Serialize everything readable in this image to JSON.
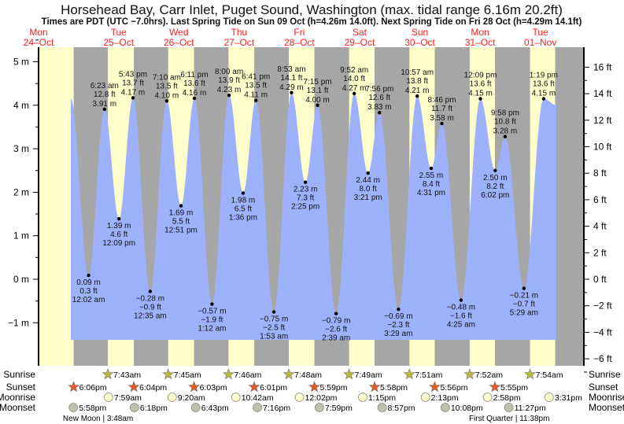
{
  "chart_data": {
    "type": "area",
    "title": "Horsehead Bay, Carr Inlet, Puget Sound, Washington (max. tidal range 6.16m 20.2ft)",
    "subtitle": "Times are PDT (UTC −7.0hrs). Last Spring Tide on Sun 09 Oct (h=4.26m 14.0ft). Next Spring Tide on Fri 28 Oct (h=4.29m 14.1ft)",
    "ylabel_left": "m",
    "ylabel_right": "ft",
    "ylim_m": [
      -1.85,
      5.45
    ],
    "left_ticks": [
      "5 m",
      "4 m",
      "3 m",
      "2 m",
      "1 m",
      "0 m",
      "−1 m"
    ],
    "left_tick_values": [
      5,
      4,
      3,
      2,
      1,
      0,
      -1
    ],
    "right_ticks": [
      "16 ft",
      "14 ft",
      "12 ft",
      "10 ft",
      "8 ft",
      "6 ft",
      "4 ft",
      "2 ft",
      "0 ft",
      "−2 ft",
      "−4 ft",
      "−6 ft"
    ],
    "right_tick_values": [
      16,
      14,
      12,
      10,
      8,
      6,
      4,
      2,
      0,
      -2,
      -4,
      -6
    ],
    "days": [
      {
        "dow": "Mon",
        "date": "24–Oct"
      },
      {
        "dow": "Tue",
        "date": "25–Oct"
      },
      {
        "dow": "Wed",
        "date": "26–Oct"
      },
      {
        "dow": "Thu",
        "date": "27–Oct"
      },
      {
        "dow": "Fri",
        "date": "28–Oct"
      },
      {
        "dow": "Sat",
        "date": "29–Oct"
      },
      {
        "dow": "Sun",
        "date": "30–Oct"
      },
      {
        "dow": "Mon",
        "date": "31–Oct"
      },
      {
        "dow": "Tue",
        "date": "01–Nov"
      }
    ],
    "curve_start": {
      "day": 0,
      "hour": 16.96,
      "m": 4.15
    },
    "curve_end": {
      "day": 8,
      "hour": 18.4,
      "m": 4.0
    },
    "extremes": [
      {
        "day": 1,
        "hour": 0.03,
        "m": 0.09,
        "type": "low",
        "m_label": "0.09 m",
        "ft_label": "0.3 ft",
        "time": "12:02 am"
      },
      {
        "day": 1,
        "hour": 6.38,
        "m": 3.91,
        "type": "high",
        "m_label": "3.91 m",
        "ft_label": "12.8 ft",
        "time": "6:23 am"
      },
      {
        "day": 1,
        "hour": 12.15,
        "m": 1.39,
        "type": "low",
        "m_label": "1.39 m",
        "ft_label": "4.6 ft",
        "time": "12:09 pm"
      },
      {
        "day": 1,
        "hour": 17.72,
        "m": 4.17,
        "type": "high",
        "m_label": "4.17 m",
        "ft_label": "13.7 ft",
        "time": "5:43 pm"
      },
      {
        "day": 2,
        "hour": 0.58,
        "m": -0.28,
        "type": "low",
        "m_label": "−0.28 m",
        "ft_label": "−0.9 ft",
        "time": "12:35 am"
      },
      {
        "day": 2,
        "hour": 7.17,
        "m": 4.1,
        "type": "high",
        "m_label": "4.10 m",
        "ft_label": "13.5 ft",
        "time": "7:10 am"
      },
      {
        "day": 2,
        "hour": 12.85,
        "m": 1.69,
        "type": "low",
        "m_label": "1.69 m",
        "ft_label": "5.5 ft",
        "time": "12:51 pm"
      },
      {
        "day": 2,
        "hour": 18.18,
        "m": 4.16,
        "type": "high",
        "m_label": "4.16 m",
        "ft_label": "13.6 ft",
        "time": "6:11 pm"
      },
      {
        "day": 3,
        "hour": 1.2,
        "m": -0.57,
        "type": "low",
        "m_label": "−0.57 m",
        "ft_label": "−1.9 ft",
        "time": "1:12 am"
      },
      {
        "day": 3,
        "hour": 8.0,
        "m": 4.23,
        "type": "high",
        "m_label": "4.23 m",
        "ft_label": "13.9 ft",
        "time": "8:00 am"
      },
      {
        "day": 3,
        "hour": 13.6,
        "m": 1.98,
        "type": "low",
        "m_label": "1.98 m",
        "ft_label": "6.5 ft",
        "time": "1:36 pm"
      },
      {
        "day": 3,
        "hour": 18.68,
        "m": 4.11,
        "type": "high",
        "m_label": "4.11 m",
        "ft_label": "13.5 ft",
        "time": "6:41 pm"
      },
      {
        "day": 4,
        "hour": 1.88,
        "m": -0.75,
        "type": "low",
        "m_label": "−0.75 m",
        "ft_label": "−2.5 ft",
        "time": "1:53 am"
      },
      {
        "day": 4,
        "hour": 8.88,
        "m": 4.29,
        "type": "high",
        "m_label": "4.29 m",
        "ft_label": "14.1 ft",
        "time": "8:53 am"
      },
      {
        "day": 4,
        "hour": 14.42,
        "m": 2.23,
        "type": "low",
        "m_label": "2.23 m",
        "ft_label": "7.3 ft",
        "time": "2:25 pm"
      },
      {
        "day": 4,
        "hour": 19.25,
        "m": 4.0,
        "type": "high",
        "m_label": "4.00 m",
        "ft_label": "13.1 ft",
        "time": "7:15 pm"
      },
      {
        "day": 5,
        "hour": 2.65,
        "m": -0.79,
        "type": "low",
        "m_label": "−0.79 m",
        "ft_label": "−2.6 ft",
        "time": "2:39 am"
      },
      {
        "day": 5,
        "hour": 9.87,
        "m": 4.27,
        "type": "high",
        "m_label": "4.27 m",
        "ft_label": "14.0 ft",
        "time": "9:52 am"
      },
      {
        "day": 5,
        "hour": 15.35,
        "m": 2.44,
        "type": "low",
        "m_label": "2.44 m",
        "ft_label": "8.0 ft",
        "time": "3:21 pm"
      },
      {
        "day": 5,
        "hour": 19.93,
        "m": 3.83,
        "type": "high",
        "m_label": "3.83 m",
        "ft_label": "12.6 ft",
        "time": "7:56 pm"
      },
      {
        "day": 6,
        "hour": 3.48,
        "m": -0.69,
        "type": "low",
        "m_label": "−0.69 m",
        "ft_label": "−2.3 ft",
        "time": "3:29 am"
      },
      {
        "day": 6,
        "hour": 10.95,
        "m": 4.21,
        "type": "high",
        "m_label": "4.21 m",
        "ft_label": "13.8 ft",
        "time": "10:57 am"
      },
      {
        "day": 6,
        "hour": 16.52,
        "m": 2.55,
        "type": "low",
        "m_label": "2.55 m",
        "ft_label": "8.4 ft",
        "time": "4:31 pm"
      },
      {
        "day": 6,
        "hour": 20.77,
        "m": 3.58,
        "type": "high",
        "m_label": "3.58 m",
        "ft_label": "11.7 ft",
        "time": "8:46 pm"
      },
      {
        "day": 7,
        "hour": 4.42,
        "m": -0.48,
        "type": "low",
        "m_label": "−0.48 m",
        "ft_label": "−1.6 ft",
        "time": "4:25 am"
      },
      {
        "day": 7,
        "hour": 12.15,
        "m": 4.15,
        "type": "high",
        "m_label": "4.15 m",
        "ft_label": "13.6 ft",
        "time": "12:09 pm"
      },
      {
        "day": 7,
        "hour": 18.03,
        "m": 2.5,
        "type": "low",
        "m_label": "2.50 m",
        "ft_label": "8.2 ft",
        "time": "6:02 pm"
      },
      {
        "day": 7,
        "hour": 21.97,
        "m": 3.28,
        "type": "high",
        "m_label": "3.28 m",
        "ft_label": "10.8 ft",
        "time": "9:58 pm"
      },
      {
        "day": 8,
        "hour": 5.48,
        "m": -0.21,
        "type": "low",
        "m_label": "−0.21 m",
        "ft_label": "−0.7 ft",
        "time": "5:29 am"
      },
      {
        "day": 8,
        "hour": 13.32,
        "m": 4.15,
        "type": "high",
        "m_label": "4.15 m",
        "ft_label": "13.6 ft",
        "time": "1:19 pm"
      }
    ],
    "row_labels": {
      "sunrise": "Sunrise",
      "sunset": "Sunset",
      "moonrise": "Moonrise",
      "moonset": "Moonset"
    },
    "sunrise": [
      {
        "day": 1,
        "hour": 7.72,
        "label": "7:43am"
      },
      {
        "day": 2,
        "hour": 7.75,
        "label": "7:45am"
      },
      {
        "day": 3,
        "hour": 7.77,
        "label": "7:46am"
      },
      {
        "day": 4,
        "hour": 7.8,
        "label": "7:48am"
      },
      {
        "day": 5,
        "hour": 7.82,
        "label": "7:49am"
      },
      {
        "day": 6,
        "hour": 7.85,
        "label": "7:51am"
      },
      {
        "day": 7,
        "hour": 7.87,
        "label": "7:52am"
      },
      {
        "day": 8,
        "hour": 7.9,
        "label": "7:54am"
      }
    ],
    "sunset": [
      {
        "day": 0,
        "hour": 18.1,
        "label": "6:06pm"
      },
      {
        "day": 1,
        "hour": 18.07,
        "label": "6:04pm"
      },
      {
        "day": 2,
        "hour": 18.05,
        "label": "6:03pm"
      },
      {
        "day": 3,
        "hour": 18.02,
        "label": "6:01pm"
      },
      {
        "day": 4,
        "hour": 17.98,
        "label": "5:59pm"
      },
      {
        "day": 5,
        "hour": 17.97,
        "label": "5:58pm"
      },
      {
        "day": 6,
        "hour": 17.93,
        "label": "5:56pm"
      },
      {
        "day": 7,
        "hour": 17.92,
        "label": "5:55pm"
      }
    ],
    "moonrise": [
      {
        "day": 1,
        "hour": 7.98,
        "label": "7:59am"
      },
      {
        "day": 2,
        "hour": 9.33,
        "label": "9:20am"
      },
      {
        "day": 3,
        "hour": 10.7,
        "label": "10:42am"
      },
      {
        "day": 4,
        "hour": 12.03,
        "label": "12:02pm"
      },
      {
        "day": 5,
        "hour": 13.25,
        "label": "1:15pm"
      },
      {
        "day": 6,
        "hour": 14.22,
        "label": "2:13pm"
      },
      {
        "day": 7,
        "hour": 14.97,
        "label": "2:58pm"
      },
      {
        "day": 8,
        "hour": 15.52,
        "label": "3:31pm"
      }
    ],
    "moonset": [
      {
        "day": 0,
        "hour": 17.97,
        "label": "5:58pm"
      },
      {
        "day": 1,
        "hour": 18.3,
        "label": "6:18pm"
      },
      {
        "day": 2,
        "hour": 18.72,
        "label": "6:43pm"
      },
      {
        "day": 3,
        "hour": 19.27,
        "label": "7:16pm"
      },
      {
        "day": 4,
        "hour": 19.98,
        "label": "7:59pm"
      },
      {
        "day": 5,
        "hour": 20.95,
        "label": "8:57pm"
      },
      {
        "day": 6,
        "hour": 22.13,
        "label": "10:08pm"
      },
      {
        "day": 7,
        "hour": 23.45,
        "label": "11:27pm"
      }
    ],
    "moon_phases": [
      {
        "day": 1,
        "hour": 3.8,
        "label": "New Moon | 3:48am"
      },
      {
        "day": 7,
        "hour": 23.63,
        "label": "First Quarter | 11:38pm"
      }
    ]
  },
  "colors": {
    "day": "#ffffcc",
    "night": "#a6a6a6",
    "water": "#9eb1fd",
    "date": "#ff2020",
    "sunrise": "#b8b83a",
    "sunset": "#e05a2a",
    "moonrise": "#ffffcc",
    "moonset": "#c0c0ae"
  }
}
